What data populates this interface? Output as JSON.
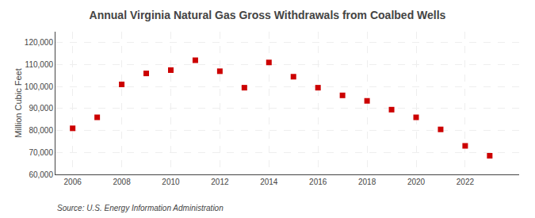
{
  "chart_data": {
    "type": "scatter",
    "title": "Annual Virginia Natural Gas Gross Withdrawals from Coalbed Wells",
    "ylabel": "Million Cubic Feet",
    "source": "Source: U.S. Energy Information Administration",
    "x": [
      2006,
      2007,
      2008,
      2009,
      2010,
      2011,
      2012,
      2013,
      2014,
      2015,
      2016,
      2017,
      2018,
      2019,
      2020,
      2021,
      2022,
      2023
    ],
    "values": [
      81000,
      86000,
      101000,
      106000,
      107500,
      112000,
      107000,
      99500,
      111000,
      104500,
      99500,
      96000,
      93500,
      89500,
      86000,
      80500,
      73000,
      68500
    ],
    "color": "#cc0000",
    "marker": "square",
    "xlim": [
      2005.3,
      2024.2
    ],
    "xticks": [
      2006,
      2008,
      2010,
      2012,
      2014,
      2016,
      2018,
      2020,
      2022
    ],
    "ylim": [
      60000,
      125000
    ],
    "yticks": [
      {
        "value": 60000,
        "label": "60,000"
      },
      {
        "value": 70000,
        "label": "70,000"
      },
      {
        "value": 80000,
        "label": "80,000"
      },
      {
        "value": 90000,
        "label": "90,000"
      },
      {
        "value": 100000,
        "label": "100,000"
      },
      {
        "value": 110000,
        "label": "110,000"
      },
      {
        "value": 120000,
        "label": "120,000"
      }
    ],
    "grid": true
  }
}
